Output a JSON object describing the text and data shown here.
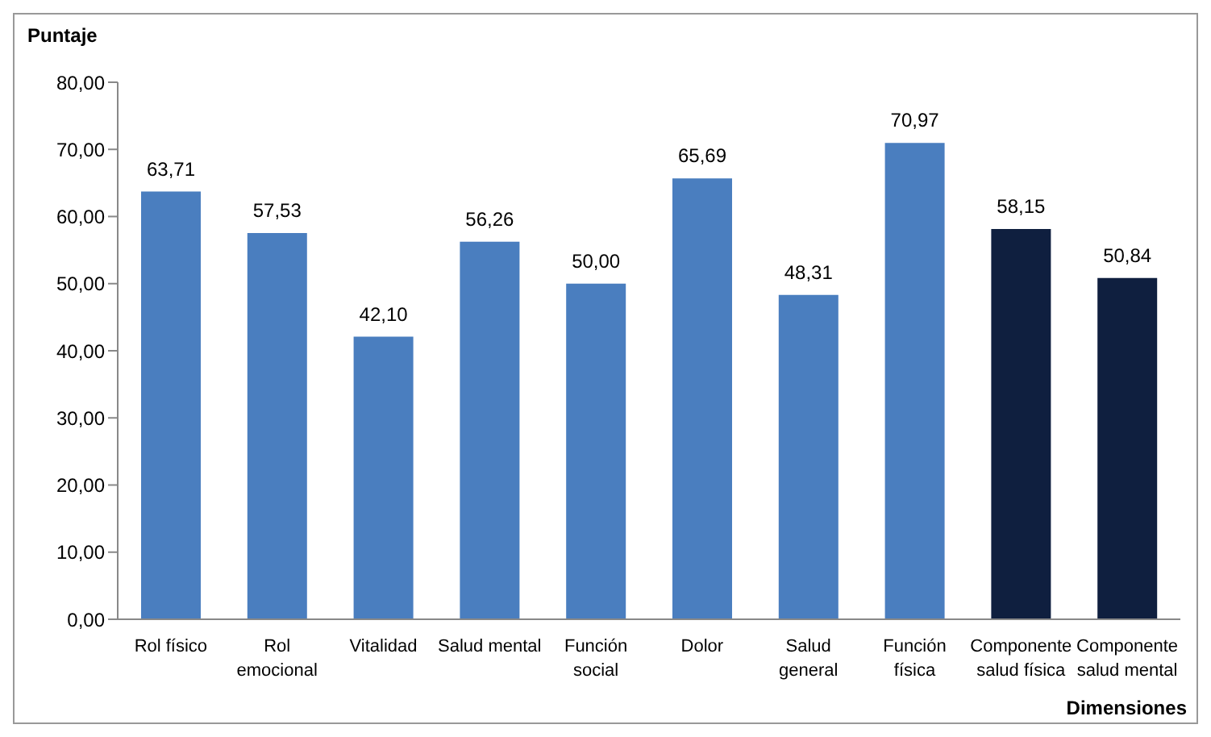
{
  "chart_data": {
    "type": "bar",
    "ylabel": "Puntaje",
    "xlabel": "Dimensiones",
    "categories": [
      "Rol físico",
      "Rol emocional",
      "Vitalidad",
      "Salud mental",
      "Función social",
      "Dolor",
      "Salud general",
      "Función física",
      "Componente salud física",
      "Componente salud mental"
    ],
    "values": [
      63.71,
      57.53,
      42.1,
      56.26,
      50.0,
      65.69,
      48.31,
      70.97,
      58.15,
      50.84
    ],
    "colors": [
      "#4a7ebf",
      "#4a7ebf",
      "#4a7ebf",
      "#4a7ebf",
      "#4a7ebf",
      "#4a7ebf",
      "#4a7ebf",
      "#4a7ebf",
      "#0f1f3f",
      "#0f1f3f"
    ],
    "value_labels": [
      "63,71",
      "57,53",
      "42,10",
      "56,26",
      "50,00",
      "65,69",
      "48,31",
      "70,97",
      "58,15",
      "50,84"
    ],
    "ylim": [
      0,
      80
    ],
    "yticks": [
      {
        "value": 0,
        "label": "0,00"
      },
      {
        "value": 10,
        "label": "10,00"
      },
      {
        "value": 20,
        "label": "20,00"
      },
      {
        "value": 30,
        "label": "30,00"
      },
      {
        "value": 40,
        "label": "40,00"
      },
      {
        "value": 50,
        "label": "50,00"
      },
      {
        "value": 60,
        "label": "60,00"
      },
      {
        "value": 70,
        "label": "70,00"
      },
      {
        "value": 80,
        "label": "80,00"
      }
    ],
    "grid": false,
    "legend": false
  }
}
